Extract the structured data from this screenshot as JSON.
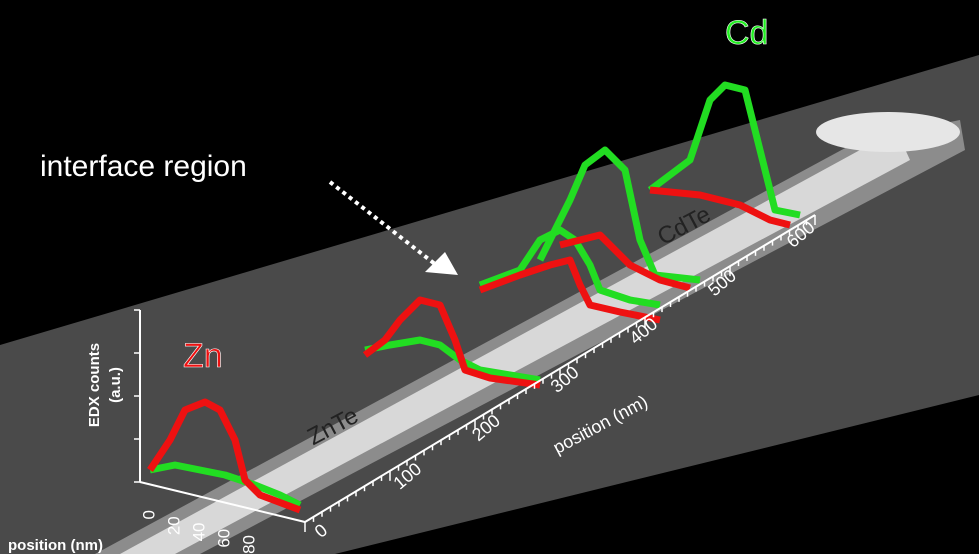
{
  "labels": {
    "cd": "Cd",
    "zn": "Zn",
    "interface": "interface region",
    "cdte": "CdTe",
    "znte": "ZnTe",
    "y_axis_line1": "EDX counts",
    "y_axis_line2": "(a.u.)",
    "long_axis": "position (nm)",
    "short_axis": "position (nm)"
  },
  "long_axis_ticks": [
    0,
    100,
    200,
    300,
    400,
    500,
    600
  ],
  "short_axis_ticks": [
    0,
    20,
    40,
    60,
    80
  ]
}
